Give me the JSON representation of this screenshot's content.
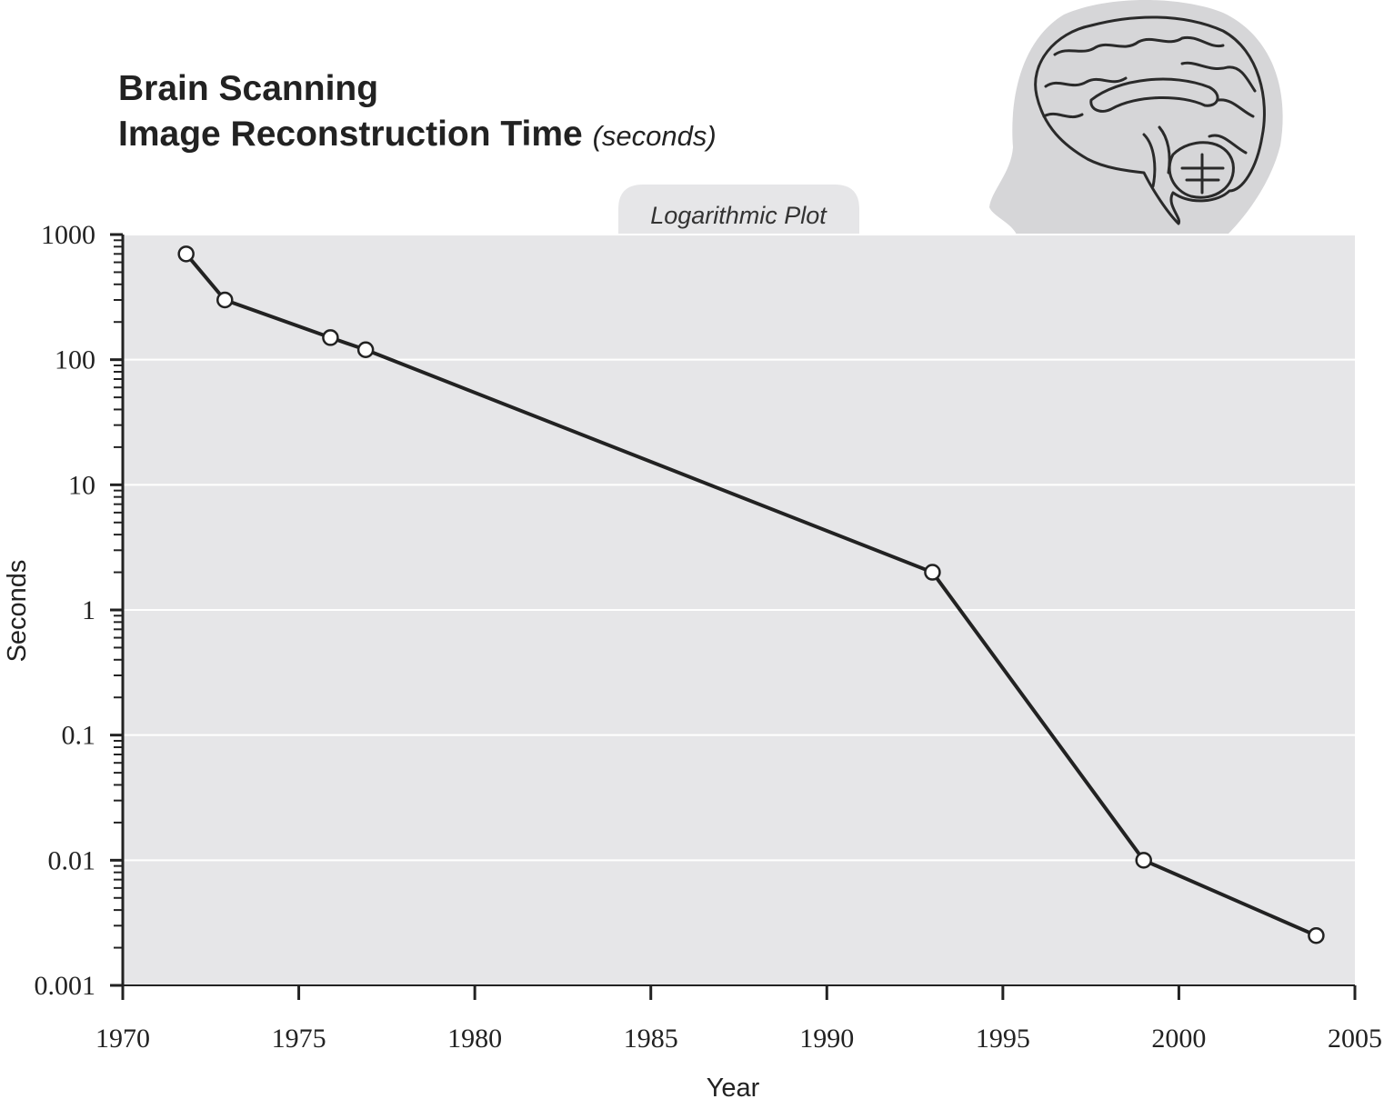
{
  "chart_data": {
    "type": "line",
    "title": "Brain Scanning",
    "subtitle": "Image Reconstruction Time",
    "title_unit": "(seconds)",
    "plot_tag": "Logarithmic Plot",
    "xlabel": "Year",
    "ylabel": "Seconds",
    "xlim": [
      1970,
      2005
    ],
    "ylim": [
      0.001,
      1000
    ],
    "yscale": "log",
    "x_ticks": [
      "1970",
      "1975",
      "1980",
      "1985",
      "1990",
      "1995",
      "2000",
      "2005"
    ],
    "y_ticks": [
      "0.001",
      "0.01",
      "0.1",
      "1",
      "10",
      "100",
      "1000"
    ],
    "grid": true,
    "legend": "none",
    "series": [
      {
        "points": [
          {
            "x": 1971.8,
            "y": 700
          },
          {
            "x": 1972.9,
            "y": 300
          },
          {
            "x": 1975.9,
            "y": 150
          },
          {
            "x": 1976.9,
            "y": 120
          },
          {
            "x": 1993,
            "y": 2
          },
          {
            "x": 1999,
            "y": 0.01
          },
          {
            "x": 2003.9,
            "y": 0.0025
          }
        ]
      }
    ],
    "colors": {
      "plot_background": "#e6e6e8",
      "gridline": "#ffffff",
      "line": "#222222",
      "marker_fill": "#ffffff",
      "text": "#222222",
      "illustration": "#d6d6d8"
    },
    "illustration": "brain-head-silhouette"
  }
}
